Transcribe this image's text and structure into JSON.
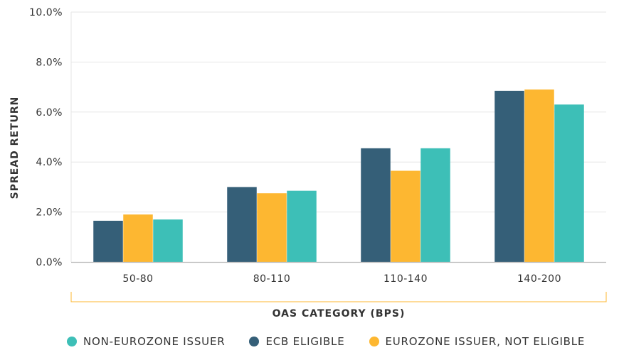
{
  "chart_data": {
    "type": "bar",
    "ylabel": "SPREAD RETURN",
    "xlabel": "OAS CATEGORY (BPS)",
    "ylim": [
      0,
      10
    ],
    "yticks": [
      "0.0%",
      "2.0%",
      "4.0%",
      "6.0%",
      "8.0%",
      "10.0%"
    ],
    "ytick_values": [
      0,
      2,
      4,
      6,
      8,
      10
    ],
    "categories": [
      "50-80",
      "80-110",
      "110-140",
      "140-200"
    ],
    "series": [
      {
        "name": "ECB ELIGIBLE",
        "color": "#355f78",
        "values": [
          1.65,
          3.0,
          4.55,
          6.85
        ]
      },
      {
        "name": "EUROZONE ISSUER, NOT ELIGIBLE",
        "color": "#fdb731",
        "values": [
          1.9,
          2.75,
          3.65,
          6.9
        ]
      },
      {
        "name": "NON-EUROZONE ISSUER",
        "color": "#3dbfb7",
        "values": [
          1.7,
          2.85,
          4.55,
          6.3
        ]
      }
    ],
    "legend_order": [
      2,
      0,
      1
    ],
    "grid": true,
    "legend_position": "bottom",
    "colors": {
      "grid": "#e6e6e6",
      "axis": "#bdbdbd",
      "bracket": "#fdb731"
    }
  }
}
